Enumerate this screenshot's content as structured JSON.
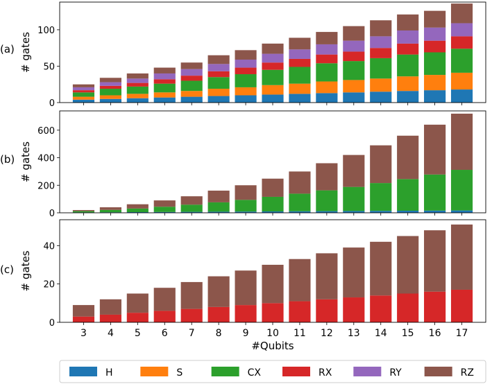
{
  "chart_data": [
    {
      "type": "bar",
      "stacked": true,
      "panel_label": "(a)",
      "ylabel": "# gates",
      "xlabel": "",
      "ylim": [
        0,
        138
      ],
      "yticks": [
        0,
        50,
        100
      ],
      "categories": [
        "3",
        "4",
        "5",
        "6",
        "7",
        "8",
        "9",
        "10",
        "11",
        "12",
        "13",
        "14",
        "15",
        "16",
        "17"
      ],
      "series": [
        {
          "name": "H",
          "values": [
            4,
            5,
            6,
            7,
            8,
            9,
            10,
            11,
            12,
            13,
            14,
            15,
            16,
            17,
            18
          ]
        },
        {
          "name": "S",
          "values": [
            4,
            5,
            6,
            7,
            8,
            10,
            11,
            13,
            14,
            16,
            17,
            18,
            20,
            21,
            23
          ]
        },
        {
          "name": "CX",
          "values": [
            6,
            9,
            10,
            12,
            14,
            16,
            18,
            21,
            23,
            25,
            26,
            28,
            30,
            31,
            33
          ]
        },
        {
          "name": "RX",
          "values": [
            3,
            4,
            5,
            6,
            7,
            8,
            9,
            10,
            11,
            12,
            13,
            14,
            15,
            16,
            17
          ]
        },
        {
          "name": "RY",
          "values": [
            4,
            5,
            6,
            8,
            9,
            10,
            11,
            12,
            13,
            14,
            15,
            16,
            18,
            18,
            18
          ]
        },
        {
          "name": "RZ",
          "values": [
            4,
            6,
            7,
            8,
            9,
            12,
            13,
            14,
            16,
            17,
            20,
            22,
            22,
            23,
            27
          ]
        }
      ]
    },
    {
      "type": "bar",
      "stacked": true,
      "panel_label": "(b)",
      "ylabel": "# gates",
      "xlabel": "",
      "ylim": [
        0,
        740
      ],
      "yticks": [
        0,
        200,
        400,
        600
      ],
      "categories": [
        "3",
        "4",
        "5",
        "6",
        "7",
        "8",
        "9",
        "10",
        "11",
        "12",
        "13",
        "14",
        "15",
        "16",
        "17"
      ],
      "series": [
        {
          "name": "H",
          "values": [
            3,
            4,
            5,
            6,
            7,
            8,
            9,
            10,
            11,
            12,
            13,
            14,
            15,
            16,
            17
          ]
        },
        {
          "name": "CX",
          "values": [
            9,
            17,
            26,
            38,
            52,
            68,
            85,
            106,
            128,
            151,
            175,
            202,
            230,
            262,
            295
          ]
        },
        {
          "name": "RZ",
          "values": [
            8,
            19,
            31,
            46,
            61,
            85,
            106,
            132,
            161,
            197,
            232,
            274,
            315,
            362,
            408
          ]
        }
      ]
    },
    {
      "type": "bar",
      "stacked": true,
      "panel_label": "(c)",
      "ylabel": "# gates",
      "xlabel": "#Qubits",
      "ylim": [
        0,
        53.5
      ],
      "yticks": [
        0,
        20,
        40
      ],
      "categories": [
        "3",
        "4",
        "5",
        "6",
        "7",
        "8",
        "9",
        "10",
        "11",
        "12",
        "13",
        "14",
        "15",
        "16",
        "17"
      ],
      "series": [
        {
          "name": "RX",
          "values": [
            3,
            4,
            5,
            6,
            7,
            8,
            9,
            10,
            11,
            12,
            13,
            14,
            15,
            16,
            17
          ]
        },
        {
          "name": "RZ",
          "values": [
            6,
            8,
            10,
            12,
            14,
            16,
            18,
            20,
            22,
            24,
            26,
            28,
            30,
            32,
            34
          ]
        }
      ]
    }
  ],
  "legend": {
    "position": "bottom",
    "entries": [
      "H",
      "S",
      "CX",
      "RX",
      "RY",
      "RZ"
    ]
  },
  "colors": {
    "H": "#1f77b4",
    "S": "#ff7f0e",
    "CX": "#2ca02c",
    "RX": "#d62728",
    "RY": "#9467bd",
    "RZ": "#8c564b"
  }
}
